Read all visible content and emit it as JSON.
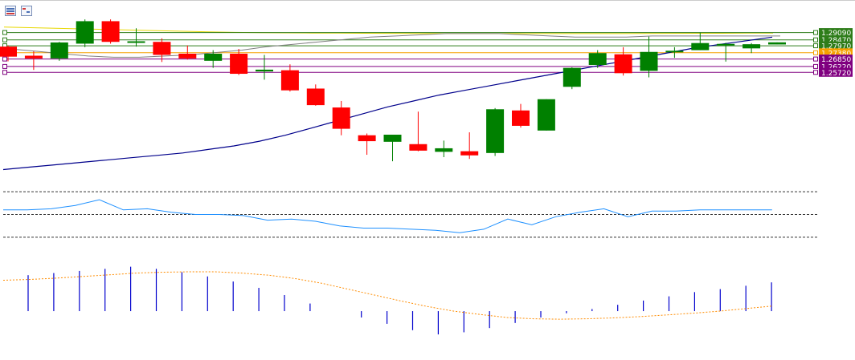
{
  "toolbar": {
    "buttons": [
      {
        "icon": "chart-list-icon"
      },
      {
        "icon": "chart-window-icon"
      }
    ]
  },
  "colors": {
    "bull": "#008000",
    "bear": "#ff0000",
    "ma_fast": "#00008b",
    "ma_slow": "#808080",
    "level_green": "#2e7d1a",
    "level_orange": "#f5a000",
    "level_purple": "#800080",
    "rsi": "#1e90ff",
    "histogram": "#0000cd",
    "signal": "#ff8c00",
    "yellow_line": "#e8d800"
  },
  "chart_data": [
    {
      "type": "candlestick",
      "title": "",
      "price_range": [
        1.237,
        1.2955
      ],
      "price_levels": [
        {
          "label": "1.29090",
          "value": 1.2909,
          "color": "#2e7d1a"
        },
        {
          "label": "1.28470",
          "value": 1.2847,
          "color": "#2e7d1a"
        },
        {
          "label": "1.27970",
          "value": 1.2797,
          "color": "#2e7d1a"
        },
        {
          "label": "1.27380",
          "value": 1.2738,
          "color": "#f5a000"
        },
        {
          "label": "1.26850",
          "value": 1.2685,
          "color": "#800080"
        },
        {
          "label": "1.26220",
          "value": 1.2622,
          "color": "#800080"
        },
        {
          "label": "1.25720",
          "value": 1.2572,
          "color": "#800080"
        }
      ],
      "candles": [
        {
          "o": 1.279,
          "h": 1.28,
          "l": 1.2665,
          "c": 1.2705
        },
        {
          "o": 1.2713,
          "h": 1.275,
          "l": 1.2593,
          "c": 1.269
        },
        {
          "o": 1.269,
          "h": 1.283,
          "l": 1.267,
          "c": 1.2825
        },
        {
          "o": 1.2815,
          "h": 1.302,
          "l": 1.2785,
          "c": 1.3005
        },
        {
          "o": 1.3005,
          "h": 1.302,
          "l": 1.2815,
          "c": 1.283
        },
        {
          "o": 1.2828,
          "h": 1.2945,
          "l": 1.279,
          "c": 1.2835
        },
        {
          "o": 1.283,
          "h": 1.286,
          "l": 1.266,
          "c": 1.272
        },
        {
          "o": 1.273,
          "h": 1.28,
          "l": 1.268,
          "c": 1.269
        },
        {
          "o": 1.267,
          "h": 1.276,
          "l": 1.261,
          "c": 1.273
        },
        {
          "o": 1.273,
          "h": 1.277,
          "l": 1.255,
          "c": 1.256
        },
        {
          "o": 1.258,
          "h": 1.272,
          "l": 1.251,
          "c": 1.2595
        },
        {
          "o": 1.259,
          "h": 1.264,
          "l": 1.241,
          "c": 1.242
        },
        {
          "o": 1.2435,
          "h": 1.247,
          "l": 1.229,
          "c": 1.2295
        },
        {
          "o": 1.2275,
          "h": 1.233,
          "l": 1.204,
          "c": 1.2095
        },
        {
          "o": 1.204,
          "h": 1.2055,
          "l": 1.1875,
          "c": 1.199
        },
        {
          "o": 1.1985,
          "h": 1.2045,
          "l": 1.182,
          "c": 1.2045
        },
        {
          "o": 1.1965,
          "h": 1.224,
          "l": 1.1905,
          "c": 1.191
        },
        {
          "o": 1.19,
          "h": 1.1995,
          "l": 1.1855,
          "c": 1.193
        },
        {
          "o": 1.1905,
          "h": 1.2065,
          "l": 1.184,
          "c": 1.187
        },
        {
          "o": 1.189,
          "h": 1.227,
          "l": 1.1865,
          "c": 1.226
        },
        {
          "o": 1.225,
          "h": 1.2305,
          "l": 1.2105,
          "c": 1.212
        },
        {
          "o": 1.208,
          "h": 1.2345,
          "l": 1.208,
          "c": 1.2345
        },
        {
          "o": 1.245,
          "h": 1.2615,
          "l": 1.243,
          "c": 1.261
        },
        {
          "o": 1.2635,
          "h": 1.276,
          "l": 1.261,
          "c": 1.2735
        },
        {
          "o": 1.2725,
          "h": 1.2785,
          "l": 1.2545,
          "c": 1.2565
        },
        {
          "o": 1.2585,
          "h": 1.2875,
          "l": 1.253,
          "c": 1.2745
        },
        {
          "o": 1.275,
          "h": 1.2785,
          "l": 1.2695,
          "c": 1.2755
        },
        {
          "o": 1.276,
          "h": 1.291,
          "l": 1.276,
          "c": 1.282
        },
        {
          "o": 1.2813,
          "h": 1.2822,
          "l": 1.2663,
          "c": 1.2813
        },
        {
          "o": 1.2775,
          "h": 1.282,
          "l": 1.2735,
          "c": 1.281
        },
        {
          "o": 1.2808,
          "h": 1.2826,
          "l": 1.2808,
          "c": 1.2826
        }
      ],
      "ma_fast": [
        1.005,
        1.007,
        1.009,
        1.011,
        1.013,
        1.015,
        1.017,
        1.019,
        1.022,
        1.025,
        1.029,
        1.034,
        1.04,
        1.046,
        1.052,
        1.058,
        1.063,
        1.068,
        1.072,
        1.076,
        1.08,
        1.084,
        1.088,
        1.092,
        1.096,
        1.1,
        1.104,
        1.108,
        1.111,
        1.114,
        1.117
      ],
      "ma_slow": [
        1.226,
        1.224,
        1.222,
        1.22,
        1.219,
        1.219,
        1.22,
        1.221,
        1.223,
        1.225,
        1.228,
        1.23,
        1.232,
        1.234,
        1.236,
        1.237,
        1.238,
        1.239,
        1.239,
        1.239,
        1.238,
        1.237,
        1.236,
        1.236,
        1.236,
        1.237,
        1.237,
        1.237,
        1.237,
        1.237,
        1.237
      ],
      "yellow_line": [
        1.2955,
        1.295,
        1.2945,
        1.294,
        1.2935,
        1.293,
        1.2925,
        1.292,
        1.2915,
        1.291,
        1.2908,
        1.2906,
        1.2905,
        1.2904,
        1.2903,
        1.2902,
        1.2901,
        1.29,
        1.29,
        1.29,
        1.29,
        1.29,
        1.29,
        1.29,
        1.29,
        1.2901,
        1.2902,
        1.2903,
        1.2903,
        1.2904,
        1.2904
      ]
    },
    {
      "type": "line",
      "title": "",
      "levels": [
        70,
        50,
        30
      ],
      "ylim": [
        20,
        80
      ],
      "values": [
        54,
        54,
        55,
        58,
        63,
        54,
        55,
        52,
        50,
        50,
        49,
        45,
        46,
        44,
        40,
        38,
        38,
        37,
        36,
        34,
        37,
        46,
        41,
        48,
        52,
        55,
        48,
        53,
        53,
        54,
        54,
        54,
        54
      ]
    },
    {
      "type": "bar",
      "title": "",
      "ylim": [
        -0.007,
        0.011
      ],
      "values": [
        0.0085,
        0.009,
        0.0095,
        0.01,
        0.0105,
        0.01,
        0.0092,
        0.0082,
        0.007,
        0.0055,
        0.0038,
        0.0018,
        0.0,
        -0.0015,
        -0.003,
        -0.0045,
        -0.0055,
        -0.005,
        -0.004,
        -0.0028,
        -0.0015,
        -0.0005,
        0.0005,
        0.0015,
        0.0025,
        0.0035,
        0.0045,
        0.0052,
        0.006,
        0.0068
      ],
      "signal": [
        0.0073,
        0.0075,
        0.0078,
        0.0082,
        0.0086,
        0.009,
        0.0092,
        0.0093,
        0.0093,
        0.009,
        0.0085,
        0.0077,
        0.0066,
        0.0052,
        0.0038,
        0.0024,
        0.0011,
        0.0,
        -0.0008,
        -0.0015,
        -0.0018,
        -0.0019,
        -0.0018,
        -0.0016,
        -0.0013,
        -0.0009,
        -0.0005,
        0.0,
        0.0006,
        0.0012
      ]
    }
  ]
}
